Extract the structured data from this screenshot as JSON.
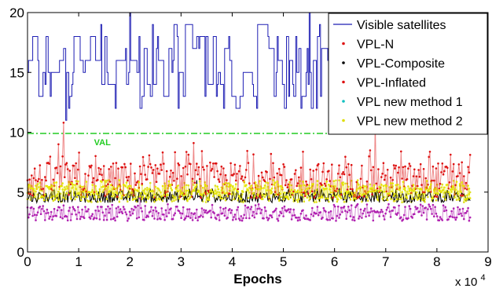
{
  "chart_data": {
    "type": "line",
    "title": "",
    "xlabel": "Epochs",
    "ylabel": "",
    "x_exponent_label": "x 10",
    "x_exponent_power": "4",
    "xlim": [
      0,
      9
    ],
    "ylim": [
      0,
      20
    ],
    "x_ticks": [
      "0",
      "1",
      "2",
      "3",
      "4",
      "5",
      "6",
      "7",
      "8",
      "9"
    ],
    "y_ticks": [
      "0",
      "5",
      "10",
      "15",
      "20"
    ],
    "grid": false,
    "legend_position": "top-right",
    "x_end": 8.65,
    "samples": 430,
    "series": [
      {
        "name": "Visible satellites",
        "color": "#1f1fb4",
        "style": "step",
        "mean": 15,
        "range": [
          11,
          20
        ],
        "spikes": [
          [
            2.0,
            20
          ],
          [
            5.5,
            20
          ],
          [
            0.75,
            11
          ],
          [
            6.75,
            11
          ]
        ]
      },
      {
        "name": "VPL-N",
        "color": "#e0e020",
        "style": "dots",
        "mean": 4.9,
        "range": [
          4.0,
          6.0
        ],
        "spikes": []
      },
      {
        "name": "VPL-Composite",
        "color": "#000000",
        "style": "line",
        "mean": 4.6,
        "range": [
          4.0,
          5.3
        ],
        "spikes": [
          [
            3.3,
            6.0
          ]
        ]
      },
      {
        "name": "VPL-Inflated",
        "color": "#dd1111",
        "style": "dots",
        "mean": 6.0,
        "range": [
          4.5,
          8.5
        ],
        "spikes": [
          [
            0.7,
            10.8
          ],
          [
            6.8,
            11.0
          ],
          [
            3.25,
            9.1
          ],
          [
            0.6,
            9.0
          ]
        ]
      },
      {
        "name": "VPL new method 1",
        "color": "#b020b0",
        "style": "dots",
        "mean": 3.2,
        "range": [
          2.4,
          4.0
        ],
        "spikes": [
          [
            2.2,
            4.5
          ]
        ]
      },
      {
        "name": "VPL new method 2",
        "color": "#e6e600",
        "style": "dots",
        "mean": 5.0,
        "range": [
          4.2,
          6.0
        ],
        "spikes": []
      }
    ],
    "legend_markers": [
      {
        "label": "Visible satellites",
        "color": "#1f1fb4",
        "marker": "line"
      },
      {
        "label": "VPL-N",
        "color": "#dd1111",
        "marker": "dot"
      },
      {
        "label": "VPL-Composite",
        "color": "#000000",
        "marker": "dot"
      },
      {
        "label": "VPL-Inflated",
        "color": "#dd1111",
        "marker": "dot"
      },
      {
        "label": "VPL new method 1",
        "color": "#11c0c0",
        "marker": "dot"
      },
      {
        "label": "VPL new method 2",
        "color": "#dddd00",
        "marker": "dot"
      }
    ],
    "annotations": [
      {
        "text": "VAL",
        "y": 9.9,
        "x": 1.3,
        "color": "#22cc22",
        "line_style": "dash-dot"
      }
    ]
  }
}
